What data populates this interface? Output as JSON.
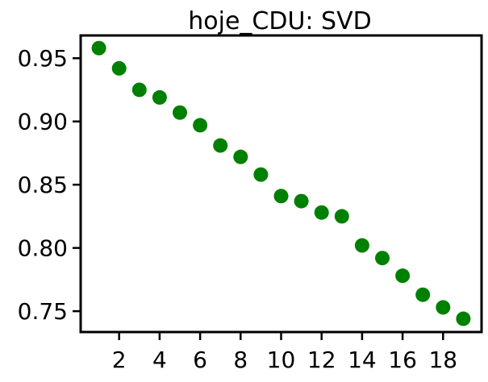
{
  "chart_data": {
    "type": "scatter",
    "title": "hoje_CDU: SVD",
    "xlabel": "",
    "ylabel": "",
    "x": [
      1,
      2,
      3,
      4,
      5,
      6,
      7,
      8,
      9,
      10,
      11,
      12,
      13,
      14,
      15,
      16,
      17,
      18,
      19
    ],
    "y": [
      0.958,
      0.942,
      0.925,
      0.919,
      0.907,
      0.897,
      0.881,
      0.872,
      0.858,
      0.841,
      0.837,
      0.828,
      0.825,
      0.802,
      0.792,
      0.778,
      0.763,
      0.753,
      0.744
    ],
    "xlim": [
      0.1,
      19.9
    ],
    "ylim": [
      0.7335,
      0.968
    ],
    "xticks": [
      2,
      4,
      6,
      8,
      10,
      12,
      14,
      16,
      18
    ],
    "xtick_labels": [
      "2",
      "4",
      "6",
      "8",
      "10",
      "12",
      "14",
      "16",
      "18"
    ],
    "yticks": [
      0.75,
      0.8,
      0.85,
      0.9,
      0.95
    ],
    "ytick_labels": [
      "0.75",
      "0.80",
      "0.85",
      "0.90",
      "0.95"
    ],
    "marker_color": "#008000",
    "grid": false,
    "legend": false
  }
}
